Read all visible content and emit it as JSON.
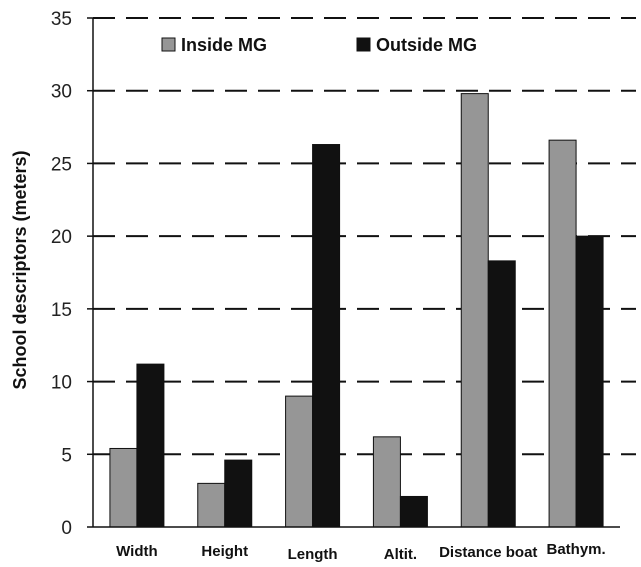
{
  "chart_data": {
    "type": "bar",
    "categories": [
      "Width",
      "Height",
      "Length",
      "Altit.",
      "Distance boat",
      "Bathym."
    ],
    "series": [
      {
        "name": "Inside MG",
        "values": [
          5.4,
          3.0,
          9.0,
          6.2,
          29.8,
          26.6
        ],
        "color": "#969696"
      },
      {
        "name": "Outside MG",
        "values": [
          11.2,
          4.6,
          26.3,
          2.1,
          18.3,
          20.0
        ],
        "color": "#111111"
      }
    ],
    "ylabel": "School descriptors (meters)",
    "xlabel": "",
    "ylim": [
      0,
      35
    ],
    "yticks": [
      0,
      5,
      10,
      15,
      20,
      25,
      30,
      35
    ],
    "grid": "dashed horizontal",
    "legend": "top"
  }
}
